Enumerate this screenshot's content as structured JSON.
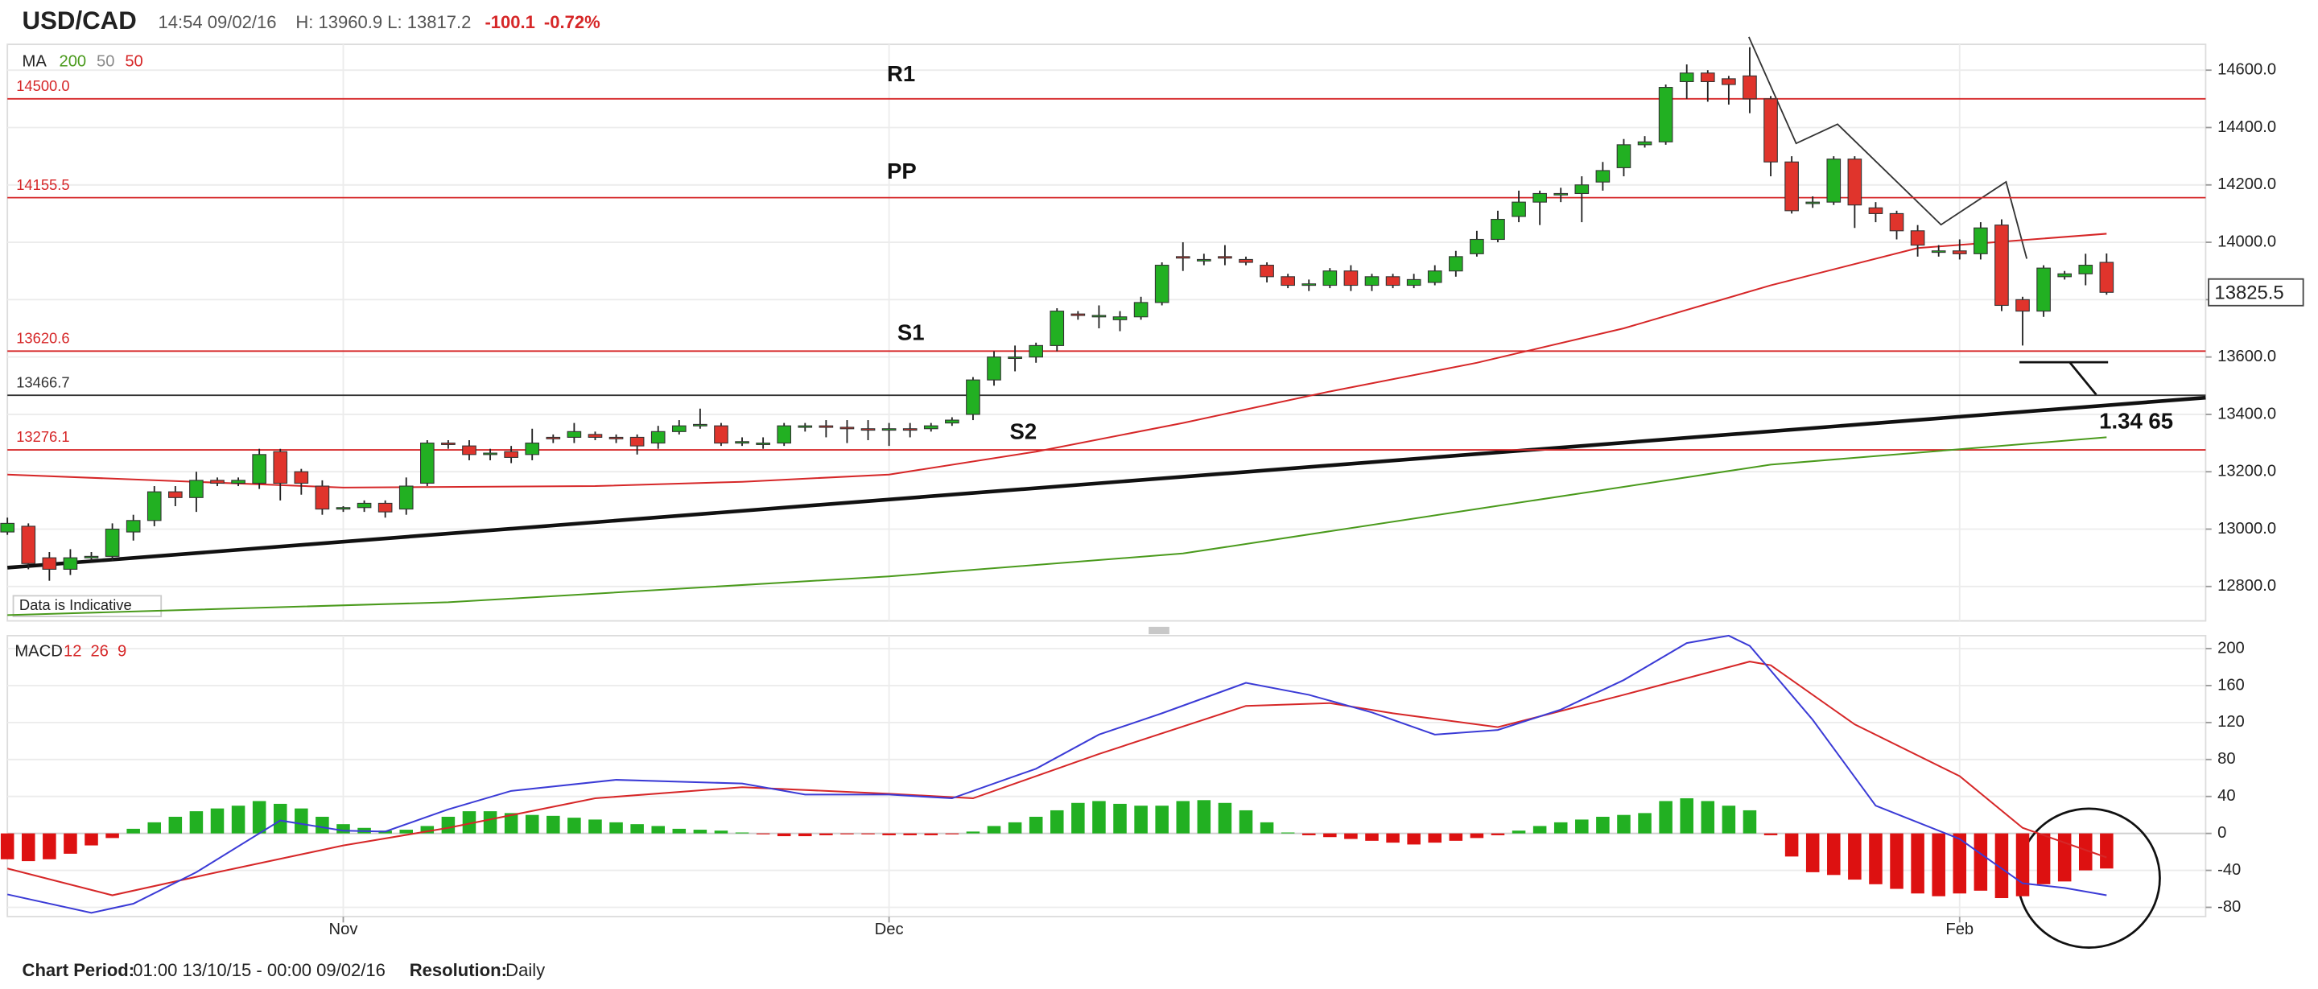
{
  "header": {
    "symbol": "USD/CAD",
    "time": "14:54 09/02/16",
    "high": "H: 13960.9",
    "low": "L: 13817.2",
    "change": "-100.1",
    "change_pct": "-0.72%"
  },
  "footer": {
    "period_label": "Chart Period:",
    "period": "01:00 13/10/15 - 00:00 09/02/16",
    "resolution_label": "Resolution:",
    "resolution": "Daily"
  },
  "chart_data": [
    {
      "type": "candlestick",
      "indicator_label": "MA",
      "note": "Data is Indicative",
      "annotations": [
        "R1",
        "PP",
        "S1",
        "S2",
        "1.34 65"
      ],
      "up_color": "#22b022",
      "down_color": "#e0342c",
      "ylim": [
        12680,
        14690
      ],
      "yticks": [
        {
          "value": 12800,
          "label": "12800.0"
        },
        {
          "value": 13000,
          "label": "13000.0"
        },
        {
          "value": 13200,
          "label": "13200.0"
        },
        {
          "value": 13400,
          "label": "13400.0"
        },
        {
          "value": 13600,
          "label": "13600.0"
        },
        {
          "value": 13800,
          "label": "13800.0"
        },
        {
          "value": 14000,
          "label": "14000.0"
        },
        {
          "value": 14200,
          "label": "14200.0"
        },
        {
          "value": 14400,
          "label": "14400.0"
        },
        {
          "value": 14600,
          "label": "14600.0"
        }
      ],
      "grid": true,
      "last_price": {
        "value": 13825.5,
        "label": "13825.5"
      },
      "levels": [
        {
          "value": 14500,
          "label": "14500.0",
          "color": "#d62728"
        },
        {
          "value": 14155.5,
          "label": "14155.5",
          "color": "#d62728"
        },
        {
          "value": 13620.6,
          "label": "13620.6",
          "color": "#d62728"
        },
        {
          "value": 13466.7,
          "label": "13466.7",
          "color": "#333333"
        },
        {
          "value": 13276.1,
          "label": "13276.1",
          "color": "#d62728"
        }
      ],
      "categories": [
        null,
        null,
        null,
        null,
        null,
        null,
        null,
        null,
        null,
        null,
        null,
        null,
        null,
        null,
        null,
        null,
        "Nov",
        null,
        null,
        null,
        null,
        null,
        null,
        null,
        null,
        null,
        null,
        null,
        null,
        null,
        null,
        null,
        null,
        null,
        null,
        null,
        null,
        null,
        null,
        null,
        null,
        null,
        "Dec",
        null,
        null,
        null,
        null,
        null,
        null,
        null,
        null,
        null,
        null,
        null,
        null,
        null,
        null,
        null,
        null,
        null,
        null,
        null,
        null,
        null,
        null,
        null,
        null,
        null,
        null,
        null,
        null,
        null,
        null,
        null,
        null,
        null,
        null,
        null,
        null,
        null,
        null,
        null,
        null,
        null,
        null,
        null,
        null,
        null,
        null,
        null,
        null,
        null,
        null,
        "Feb",
        null,
        null,
        null,
        null,
        null,
        null,
        null
      ],
      "open": [
        12990,
        13010,
        12900,
        12860,
        12900,
        12905,
        12990,
        13030,
        13130,
        13110,
        13170,
        13160,
        13160,
        13270,
        13200,
        13150,
        13070,
        13075,
        13090,
        13070,
        13160,
        13300,
        13290,
        13260,
        13270,
        13260,
        13320,
        13320,
        13330,
        13320,
        13320,
        13300,
        13340,
        13360,
        13360,
        13300,
        13300,
        13300,
        13360,
        13360,
        13355,
        13350,
        13345,
        13350,
        13350,
        13370,
        13400,
        13520,
        13600,
        13600,
        13640,
        13750,
        13740,
        13730,
        13740,
        13790,
        13950,
        13940,
        13950,
        13940,
        13920,
        13880,
        13850,
        13850,
        13900,
        13850,
        13880,
        13850,
        13860,
        13900,
        13960,
        14010,
        14090,
        14140,
        14170,
        14170,
        14210,
        14260,
        14340,
        14350,
        14560,
        14590,
        14570,
        14580,
        14500,
        14280,
        14140,
        14140,
        14290,
        14120,
        14100,
        14040,
        13970,
        13970,
        13960,
        14060,
        13800,
        13760,
        13880,
        13890,
        13930
      ],
      "high": [
        13040,
        13020,
        12920,
        12930,
        12920,
        13020,
        13050,
        13150,
        13150,
        13200,
        13180,
        13180,
        13280,
        13280,
        13210,
        13170,
        13080,
        13100,
        13100,
        13180,
        13310,
        13310,
        13310,
        13280,
        13290,
        13350,
        13330,
        13370,
        13340,
        13330,
        13330,
        13360,
        13380,
        13420,
        13370,
        13320,
        13320,
        13370,
        13370,
        13380,
        13380,
        13380,
        13370,
        13370,
        13370,
        13390,
        13530,
        13620,
        13640,
        13650,
        13770,
        13760,
        13780,
        13760,
        13810,
        13930,
        14000,
        13960,
        13990,
        13950,
        13930,
        13890,
        13870,
        13910,
        13920,
        13890,
        13890,
        13890,
        13920,
        13970,
        14040,
        14110,
        14180,
        14180,
        14190,
        14230,
        14280,
        14360,
        14370,
        14550,
        14620,
        14600,
        14580,
        14680,
        14510,
        14300,
        14160,
        14300,
        14300,
        14140,
        14110,
        14060,
        13990,
        14010,
        14070,
        14080,
        13810,
        13920,
        13900,
        13960,
        13960.9
      ],
      "low": [
        12980,
        12860,
        12820,
        12840,
        12890,
        12890,
        12960,
        13010,
        13080,
        13060,
        13150,
        13150,
        13140,
        13100,
        13120,
        13050,
        13060,
        13060,
        13040,
        13050,
        13150,
        13280,
        13240,
        13240,
        13230,
        13240,
        13300,
        13300,
        13310,
        13300,
        13260,
        13280,
        13330,
        13350,
        13290,
        13290,
        13280,
        13290,
        13340,
        13320,
        13300,
        13310,
        13290,
        13320,
        13340,
        13360,
        13380,
        13500,
        13550,
        13580,
        13620,
        13730,
        13700,
        13690,
        13730,
        13780,
        13900,
        13920,
        13920,
        13920,
        13860,
        13840,
        13830,
        13840,
        13830,
        13830,
        13840,
        13840,
        13850,
        13880,
        13950,
        14000,
        14070,
        14060,
        14140,
        14070,
        14180,
        14230,
        14330,
        14340,
        14500,
        14490,
        14480,
        14450,
        14230,
        14100,
        14120,
        14130,
        14050,
        14070,
        14010,
        13950,
        13950,
        13940,
        13940,
        13760,
        13640,
        13740,
        13870,
        13850,
        13817.2
      ],
      "close": [
        13020,
        12880,
        12860,
        12900,
        12905,
        13000,
        13030,
        13130,
        13110,
        13170,
        13160,
        13170,
        13260,
        13160,
        13160,
        13070,
        13075,
        13090,
        13060,
        13150,
        13300,
        13295,
        13260,
        13265,
        13250,
        13300,
        13315,
        13340,
        13320,
        13315,
        13290,
        13340,
        13360,
        13365,
        13300,
        13305,
        13300,
        13360,
        13360,
        13355,
        13350,
        13345,
        13350,
        13345,
        13360,
        13380,
        13520,
        13600,
        13600,
        13640,
        13760,
        13745,
        13745,
        13740,
        13790,
        13920,
        13945,
        13940,
        13945,
        13930,
        13880,
        13850,
        13855,
        13900,
        13850,
        13880,
        13850,
        13870,
        13900,
        13950,
        14010,
        14080,
        14140,
        14170,
        14170,
        14200,
        14250,
        14340,
        14350,
        14540,
        14590,
        14560,
        14550,
        14500,
        14280,
        14110,
        14140,
        14290,
        14130,
        14100,
        14040,
        13990,
        13970,
        13960,
        14050,
        13780,
        13760,
        13910,
        13890,
        13920,
        13825.5
      ],
      "series": [
        {
          "name": "200",
          "color": "#4a9a1c",
          "x": [
            0,
            21,
            42,
            56,
            70,
            84,
            100
          ],
          "values": [
            12700,
            12745,
            12835,
            12915,
            13070,
            13225,
            13320
          ]
        },
        {
          "name": "50",
          "color": "#8a8a8a",
          "x": [],
          "values": []
        },
        {
          "name": "50",
          "color": "#d62728",
          "x": [
            0,
            16,
            28,
            35,
            42,
            49,
            56,
            63,
            70,
            77,
            84,
            91,
            100
          ],
          "values": [
            13190,
            13145,
            13150,
            13165,
            13190,
            13270,
            13370,
            13480,
            13580,
            13700,
            13850,
            13980,
            14030
          ]
        }
      ]
    },
    {
      "type": "macd",
      "indicator_label": "MACD",
      "params": [
        "12",
        "26",
        "9"
      ],
      "param_color": "#d62728",
      "ylim": [
        -90,
        214
      ],
      "yticks": [
        -80,
        -40,
        0,
        40,
        80,
        120,
        160,
        200
      ],
      "grid": true,
      "histogram": {
        "up_color": "#22b022",
        "down_color": "#dd1111",
        "values": [
          -28,
          -30,
          -28,
          -22,
          -13,
          -5,
          5,
          12,
          18,
          24,
          27,
          30,
          35,
          32,
          27,
          18,
          10,
          6,
          3,
          4,
          8,
          18,
          24,
          24,
          22,
          20,
          19,
          17,
          15,
          12,
          10,
          8,
          5,
          4,
          3,
          1,
          -1,
          -3,
          -3,
          -2,
          -1,
          -1,
          -2,
          -2,
          -2,
          -1,
          2,
          8,
          12,
          18,
          25,
          33,
          35,
          32,
          30,
          30,
          35,
          36,
          33,
          25,
          12,
          1,
          -2,
          -4,
          -6,
          -8,
          -10,
          -12,
          -10,
          -8,
          -5,
          -2,
          3,
          8,
          12,
          15,
          18,
          20,
          22,
          35,
          38,
          35,
          30,
          25,
          -2,
          -25,
          -42,
          -45,
          -50,
          -55,
          -60,
          -65,
          -68,
          -65,
          -62,
          -70,
          -68,
          -55,
          -52,
          -40,
          -38
        ]
      },
      "macd_line": {
        "color": "#3b3bd6",
        "x": [
          0,
          4,
          6,
          9,
          13,
          16,
          18,
          21,
          24,
          29,
          35,
          38,
          42,
          45,
          49,
          52,
          55,
          59,
          62,
          65,
          68,
          71,
          74,
          77,
          80,
          82,
          83,
          86,
          89,
          93,
          96,
          98,
          100
        ],
        "values": [
          -66,
          -86,
          -76,
          -42,
          14,
          3,
          2,
          26,
          46,
          58,
          54,
          42,
          42,
          38,
          70,
          107,
          130,
          163,
          150,
          131,
          107,
          112,
          134,
          166,
          206,
          214,
          203,
          123,
          30,
          -6,
          -54,
          -59,
          -67
        ]
      },
      "signal_line": {
        "color": "#d62728",
        "x": [
          0,
          5,
          10,
          16,
          21,
          28,
          35,
          42,
          46,
          52,
          59,
          63,
          66,
          71,
          77,
          83,
          84,
          88,
          93,
          96,
          100
        ],
        "values": [
          -38,
          -67,
          -42,
          -13,
          6,
          38,
          50,
          43,
          38,
          86,
          138,
          141,
          130,
          115,
          150,
          186,
          182,
          118,
          62,
          6,
          -26
        ]
      }
    }
  ]
}
